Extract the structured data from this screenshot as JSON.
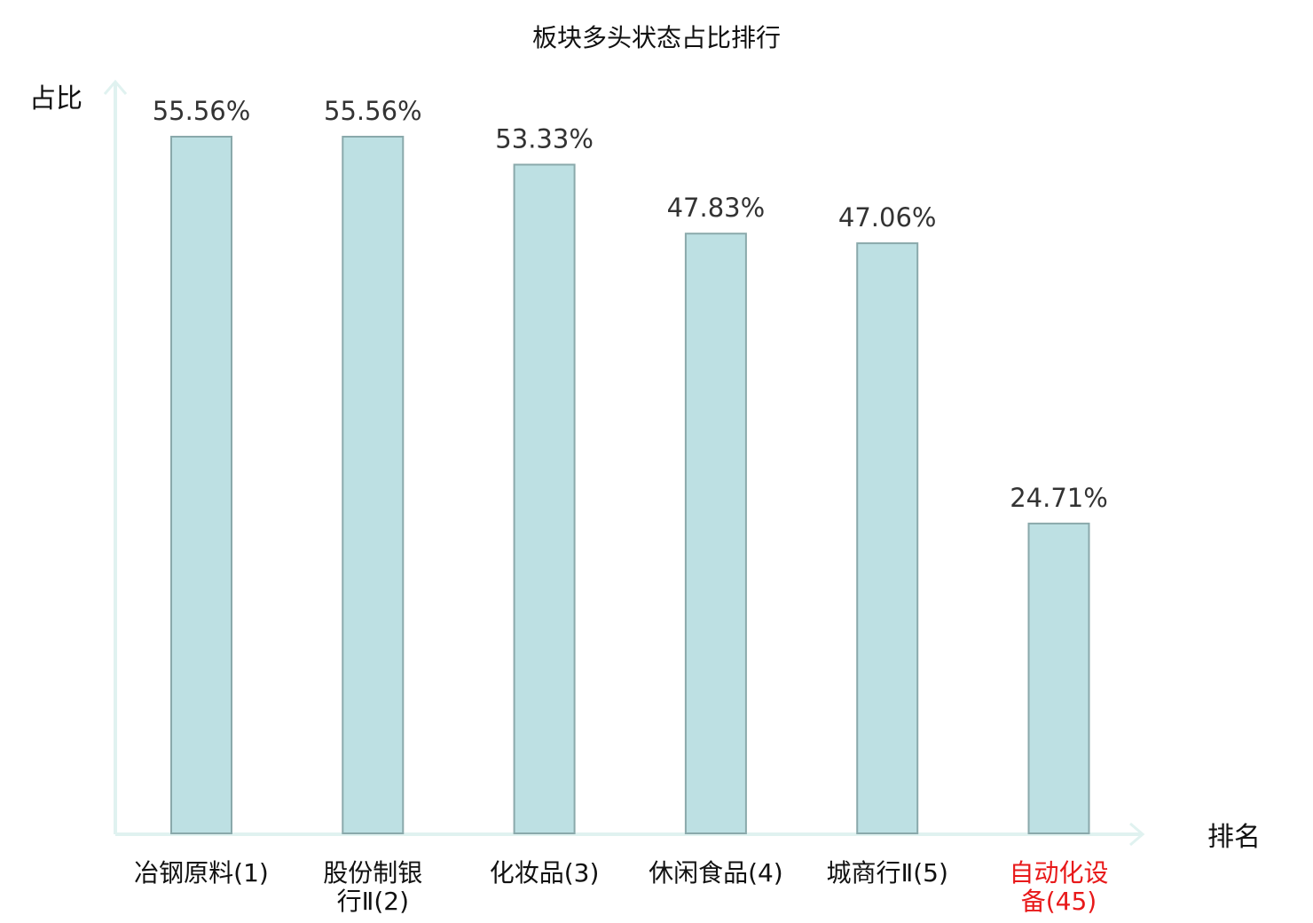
{
  "chart_data": {
    "type": "bar",
    "title": "板块多头状态占比排行",
    "ylabel": "占比",
    "xlabel": "排名",
    "categories": [
      [
        "冶钢原料(1)"
      ],
      [
        "股份制银",
        "行Ⅱ(2)"
      ],
      [
        "化妆品(3)"
      ],
      [
        "休闲食品(4)"
      ],
      [
        "城商行Ⅱ(5)"
      ],
      [
        "自动化设",
        "备(45)"
      ]
    ],
    "values": [
      55.56,
      55.56,
      53.33,
      47.83,
      47.06,
      24.71
    ],
    "value_labels": [
      "55.56%",
      "55.56%",
      "53.33%",
      "47.83%",
      "47.06%",
      "24.71%"
    ],
    "highlight_index": 5,
    "ylim": [
      0,
      60
    ],
    "grid": false,
    "colors": {
      "bar_fill": "#bde0e3",
      "bar_stroke": "#8aa9ab",
      "axis": "#e0f2f0",
      "highlight_text": "#e8191a",
      "text": "#111111",
      "value_text": "#333333"
    }
  }
}
